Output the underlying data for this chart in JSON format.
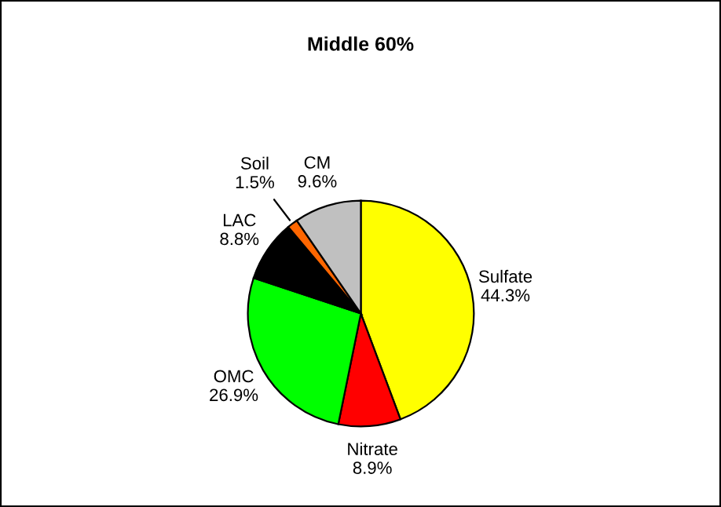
{
  "chart_data": {
    "type": "pie",
    "title": "Middle 60%",
    "categories": [
      "Sulfate",
      "Nitrate",
      "OMC",
      "LAC",
      "Soil",
      "CM"
    ],
    "values": [
      44.3,
      8.9,
      26.9,
      8.8,
      1.5,
      9.6
    ],
    "value_labels": [
      "44.3%",
      "8.9%",
      "26.9%",
      "8.8%",
      "1.5%",
      "9.6%"
    ],
    "colors": [
      "#ffff00",
      "#ff0000",
      "#00ff00",
      "#000000",
      "#ff6600",
      "#c0c0c0"
    ],
    "legend": false
  }
}
